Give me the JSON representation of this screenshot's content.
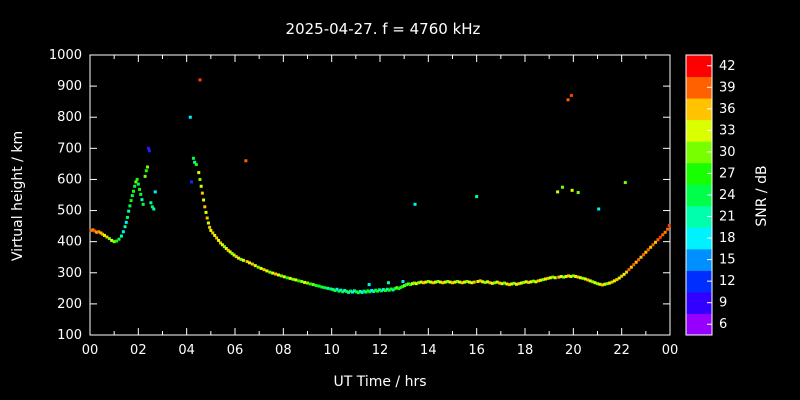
{
  "title": "2025-04-27. f = 4760 kHz",
  "colors": {
    "background": "#000000",
    "foreground": "#ffffff"
  },
  "chart_data": {
    "type": "scatter",
    "title": "2025-04-27. f = 4760 kHz",
    "xlabel": "UT Time / hrs",
    "ylabel": "Virtual height / km",
    "colorbar_label": "SNR / dB",
    "xlim": [
      0,
      24
    ],
    "ylim": [
      100,
      1000
    ],
    "grid": false,
    "x_ticks": [
      "00",
      "02",
      "04",
      "06",
      "08",
      "10",
      "12",
      "14",
      "16",
      "18",
      "20",
      "22",
      "00"
    ],
    "x_tick_hours": [
      0,
      2,
      4,
      6,
      8,
      10,
      12,
      14,
      16,
      18,
      20,
      22,
      24
    ],
    "y_ticks": [
      100,
      200,
      300,
      400,
      500,
      600,
      700,
      800,
      900,
      1000
    ],
    "colorbar_ticks": [
      6,
      9,
      12,
      15,
      18,
      21,
      24,
      27,
      30,
      33,
      36,
      39,
      42
    ],
    "colorbar_range": [
      4.5,
      43.5
    ],
    "points_format": [
      "ut_hours",
      "virtual_height_km",
      "snr_db"
    ],
    "points": [
      [
        0.05,
        436,
        39
      ],
      [
        0.12,
        438,
        38
      ],
      [
        0.2,
        434,
        39
      ],
      [
        0.28,
        430,
        37
      ],
      [
        0.36,
        432,
        38
      ],
      [
        0.45,
        428,
        36
      ],
      [
        0.52,
        424,
        37
      ],
      [
        0.6,
        420,
        33
      ],
      [
        0.7,
        415,
        36
      ],
      [
        0.8,
        410,
        30
      ],
      [
        0.9,
        404,
        33
      ],
      [
        1.0,
        400,
        30
      ],
      [
        1.1,
        402,
        27
      ],
      [
        1.2,
        408,
        24
      ],
      [
        1.3,
        418,
        21
      ],
      [
        1.38,
        432,
        18
      ],
      [
        1.45,
        448,
        21
      ],
      [
        1.5,
        462,
        18
      ],
      [
        1.55,
        478,
        24
      ],
      [
        1.6,
        498,
        21
      ],
      [
        1.65,
        515,
        24
      ],
      [
        1.7,
        532,
        27
      ],
      [
        1.75,
        548,
        24
      ],
      [
        1.8,
        562,
        27
      ],
      [
        1.85,
        578,
        24
      ],
      [
        1.9,
        592,
        30
      ],
      [
        1.95,
        600,
        27
      ],
      [
        2.0,
        585,
        24
      ],
      [
        2.05,
        568,
        27
      ],
      [
        2.1,
        552,
        24
      ],
      [
        2.15,
        535,
        21
      ],
      [
        2.2,
        520,
        24
      ],
      [
        2.28,
        610,
        30
      ],
      [
        2.33,
        628,
        27
      ],
      [
        2.38,
        640,
        30
      ],
      [
        2.42,
        700,
        8
      ],
      [
        2.46,
        692,
        12
      ],
      [
        2.52,
        525,
        21
      ],
      [
        2.58,
        512,
        24
      ],
      [
        2.64,
        505,
        21
      ],
      [
        2.7,
        560,
        18
      ],
      [
        4.15,
        800,
        18
      ],
      [
        4.2,
        592,
        12
      ],
      [
        4.28,
        668,
        24
      ],
      [
        4.33,
        655,
        21
      ],
      [
        4.4,
        648,
        27
      ],
      [
        4.55,
        920,
        40
      ],
      [
        4.5,
        622,
        33
      ],
      [
        4.55,
        600,
        30
      ],
      [
        4.6,
        578,
        33
      ],
      [
        4.65,
        556,
        36
      ],
      [
        4.7,
        534,
        33
      ],
      [
        4.75,
        512,
        36
      ],
      [
        4.8,
        494,
        33
      ],
      [
        4.85,
        476,
        36
      ],
      [
        4.9,
        460,
        33
      ],
      [
        4.95,
        446,
        36
      ],
      [
        5.0,
        436,
        33
      ],
      [
        5.08,
        428,
        36
      ],
      [
        5.16,
        420,
        33
      ],
      [
        5.24,
        412,
        36
      ],
      [
        5.32,
        404,
        33
      ],
      [
        5.4,
        396,
        36
      ],
      [
        5.48,
        390,
        33
      ],
      [
        5.56,
        384,
        30
      ],
      [
        5.64,
        378,
        33
      ],
      [
        5.72,
        372,
        36
      ],
      [
        5.8,
        367,
        33
      ],
      [
        5.88,
        362,
        30
      ],
      [
        5.96,
        357,
        33
      ],
      [
        6.05,
        352,
        36
      ],
      [
        6.15,
        347,
        33
      ],
      [
        6.25,
        343,
        30
      ],
      [
        6.35,
        340,
        33
      ],
      [
        6.45,
        660,
        39
      ],
      [
        6.5,
        336,
        36
      ],
      [
        6.6,
        332,
        33
      ],
      [
        6.72,
        328,
        36
      ],
      [
        6.84,
        323,
        33
      ],
      [
        6.96,
        318,
        30
      ],
      [
        7.08,
        314,
        33
      ],
      [
        7.2,
        310,
        36
      ],
      [
        7.32,
        306,
        33
      ],
      [
        7.44,
        302,
        30
      ],
      [
        7.56,
        299,
        33
      ],
      [
        7.68,
        296,
        36
      ],
      [
        7.8,
        293,
        33
      ],
      [
        7.92,
        290,
        30
      ],
      [
        8.04,
        287,
        33
      ],
      [
        8.16,
        284,
        27
      ],
      [
        8.28,
        282,
        33
      ],
      [
        8.4,
        279,
        30
      ],
      [
        8.52,
        277,
        33
      ],
      [
        8.64,
        274,
        27
      ],
      [
        8.76,
        272,
        30
      ],
      [
        8.88,
        269,
        33
      ],
      [
        9.0,
        267,
        30
      ],
      [
        9.12,
        264,
        27
      ],
      [
        9.24,
        262,
        30
      ],
      [
        9.36,
        259,
        24
      ],
      [
        9.48,
        257,
        27
      ],
      [
        9.6,
        254,
        24
      ],
      [
        9.72,
        252,
        27
      ],
      [
        9.84,
        250,
        21
      ],
      [
        9.96,
        248,
        24
      ],
      [
        10.06,
        246,
        21
      ],
      [
        10.14,
        243,
        27
      ],
      [
        10.22,
        247,
        18
      ],
      [
        10.3,
        241,
        24
      ],
      [
        10.38,
        244,
        21
      ],
      [
        10.46,
        239,
        24
      ],
      [
        10.54,
        243,
        18
      ],
      [
        10.62,
        240,
        27
      ],
      [
        10.7,
        237,
        21
      ],
      [
        10.78,
        241,
        24
      ],
      [
        10.86,
        238,
        18
      ],
      [
        10.94,
        242,
        21
      ],
      [
        11.02,
        239,
        24
      ],
      [
        11.1,
        236,
        27
      ],
      [
        11.18,
        240,
        21
      ],
      [
        11.26,
        237,
        18
      ],
      [
        11.34,
        241,
        24
      ],
      [
        11.42,
        238,
        21
      ],
      [
        11.5,
        242,
        27
      ],
      [
        11.55,
        262,
        18
      ],
      [
        11.58,
        239,
        24
      ],
      [
        11.66,
        243,
        18
      ],
      [
        11.74,
        240,
        21
      ],
      [
        11.82,
        244,
        24
      ],
      [
        11.9,
        241,
        27
      ],
      [
        11.98,
        245,
        21
      ],
      [
        12.06,
        242,
        24
      ],
      [
        12.14,
        246,
        18
      ],
      [
        12.22,
        243,
        27
      ],
      [
        12.3,
        247,
        21
      ],
      [
        12.35,
        268,
        21
      ],
      [
        12.38,
        244,
        24
      ],
      [
        12.46,
        248,
        27
      ],
      [
        12.54,
        245,
        21
      ],
      [
        12.62,
        249,
        24
      ],
      [
        12.7,
        252,
        30
      ],
      [
        12.78,
        249,
        27
      ],
      [
        12.86,
        253,
        24
      ],
      [
        12.94,
        256,
        27
      ],
      [
        12.95,
        272,
        18
      ],
      [
        13.02,
        259,
        30
      ],
      [
        13.1,
        262,
        24
      ],
      [
        13.18,
        264,
        30
      ],
      [
        13.26,
        262,
        27
      ],
      [
        13.34,
        265,
        33
      ],
      [
        13.45,
        520,
        18
      ],
      [
        13.42,
        267,
        30
      ],
      [
        13.5,
        265,
        33
      ],
      [
        13.6,
        268,
        30
      ],
      [
        13.7,
        270,
        33
      ],
      [
        13.8,
        268,
        36
      ],
      [
        13.9,
        270,
        33
      ],
      [
        14.0,
        272,
        30
      ],
      [
        14.1,
        270,
        33
      ],
      [
        14.2,
        268,
        36
      ],
      [
        14.3,
        270,
        33
      ],
      [
        14.4,
        272,
        30
      ],
      [
        14.5,
        270,
        33
      ],
      [
        14.6,
        268,
        36
      ],
      [
        14.7,
        270,
        33
      ],
      [
        14.8,
        272,
        30
      ],
      [
        14.9,
        270,
        33
      ],
      [
        15.0,
        268,
        36
      ],
      [
        15.1,
        270,
        33
      ],
      [
        15.2,
        272,
        30
      ],
      [
        15.3,
        270,
        33
      ],
      [
        15.4,
        268,
        36
      ],
      [
        15.5,
        270,
        33
      ],
      [
        15.6,
        272,
        30
      ],
      [
        15.7,
        270,
        33
      ],
      [
        15.8,
        268,
        33
      ],
      [
        15.9,
        270,
        36
      ],
      [
        16.0,
        545,
        21
      ],
      [
        16.05,
        272,
        33
      ],
      [
        16.15,
        274,
        36
      ],
      [
        16.25,
        271,
        33
      ],
      [
        16.35,
        269,
        30
      ],
      [
        16.45,
        271,
        33
      ],
      [
        16.55,
        268,
        36
      ],
      [
        16.65,
        266,
        33
      ],
      [
        16.75,
        268,
        30
      ],
      [
        16.85,
        270,
        33
      ],
      [
        16.95,
        267,
        36
      ],
      [
        17.05,
        265,
        33
      ],
      [
        17.15,
        267,
        30
      ],
      [
        17.25,
        264,
        33
      ],
      [
        17.35,
        262,
        36
      ],
      [
        17.45,
        264,
        33
      ],
      [
        17.55,
        266,
        30
      ],
      [
        17.65,
        263,
        33
      ],
      [
        17.75,
        265,
        36
      ],
      [
        17.85,
        267,
        33
      ],
      [
        17.95,
        269,
        30
      ],
      [
        18.05,
        271,
        33
      ],
      [
        18.15,
        269,
        36
      ],
      [
        18.25,
        271,
        33
      ],
      [
        18.35,
        273,
        30
      ],
      [
        18.45,
        271,
        33
      ],
      [
        18.55,
        274,
        36
      ],
      [
        18.65,
        276,
        33
      ],
      [
        18.75,
        278,
        30
      ],
      [
        18.85,
        280,
        33
      ],
      [
        18.95,
        282,
        36
      ],
      [
        19.05,
        284,
        33
      ],
      [
        19.15,
        286,
        30
      ],
      [
        19.25,
        284,
        33
      ],
      [
        19.35,
        560,
        33
      ],
      [
        19.55,
        575,
        30
      ],
      [
        19.78,
        856,
        39
      ],
      [
        19.92,
        870,
        40
      ],
      [
        19.95,
        565,
        33
      ],
      [
        20.2,
        558,
        30
      ],
      [
        19.4,
        286,
        36
      ],
      [
        19.5,
        288,
        33
      ],
      [
        19.6,
        286,
        30
      ],
      [
        19.7,
        288,
        33
      ],
      [
        19.8,
        290,
        36
      ],
      [
        19.9,
        288,
        33
      ],
      [
        20.0,
        290,
        30
      ],
      [
        20.1,
        288,
        33
      ],
      [
        20.2,
        286,
        36
      ],
      [
        20.3,
        284,
        33
      ],
      [
        20.4,
        282,
        30
      ],
      [
        20.5,
        280,
        33
      ],
      [
        20.6,
        277,
        36
      ],
      [
        20.7,
        274,
        33
      ],
      [
        20.8,
        271,
        30
      ],
      [
        20.9,
        268,
        33
      ],
      [
        21.0,
        265,
        30
      ],
      [
        21.05,
        505,
        18
      ],
      [
        21.1,
        263,
        33
      ],
      [
        21.2,
        261,
        36
      ],
      [
        21.3,
        263,
        33
      ],
      [
        21.4,
        265,
        30
      ],
      [
        21.5,
        267,
        33
      ],
      [
        21.6,
        270,
        36
      ],
      [
        21.7,
        274,
        33
      ],
      [
        21.8,
        278,
        36
      ],
      [
        21.9,
        283,
        33
      ],
      [
        22.0,
        289,
        36
      ],
      [
        22.1,
        295,
        33
      ],
      [
        22.15,
        590,
        30
      ],
      [
        22.2,
        302,
        36
      ],
      [
        22.3,
        310,
        39
      ],
      [
        22.4,
        318,
        36
      ],
      [
        22.5,
        326,
        39
      ],
      [
        22.6,
        334,
        36
      ],
      [
        22.7,
        342,
        39
      ],
      [
        22.8,
        350,
        36
      ],
      [
        22.9,
        358,
        39
      ],
      [
        23.0,
        366,
        36
      ],
      [
        23.1,
        374,
        39
      ],
      [
        23.2,
        382,
        36
      ],
      [
        23.3,
        390,
        39
      ],
      [
        23.4,
        398,
        36
      ],
      [
        23.5,
        406,
        39
      ],
      [
        23.6,
        414,
        40
      ],
      [
        23.7,
        422,
        39
      ],
      [
        23.8,
        430,
        38
      ],
      [
        23.9,
        440,
        39
      ],
      [
        23.97,
        452,
        40
      ]
    ]
  }
}
